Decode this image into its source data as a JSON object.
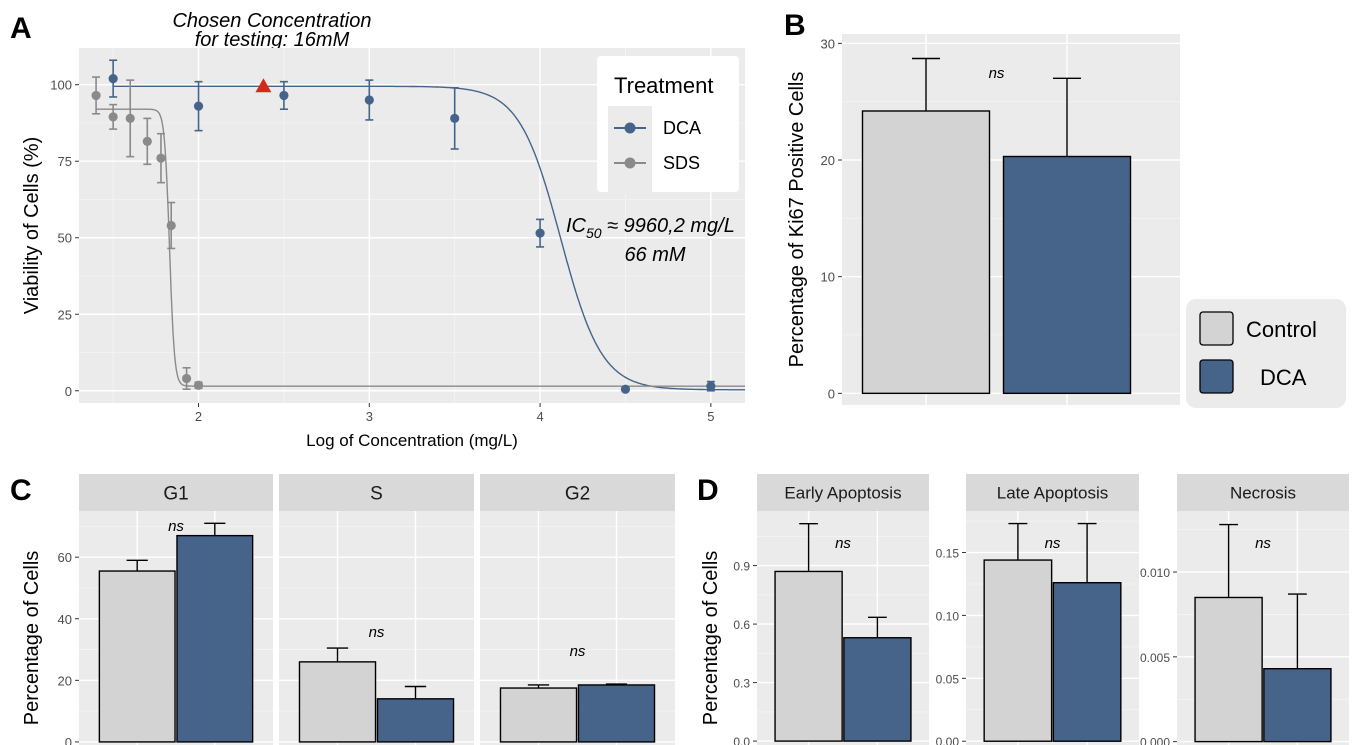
{
  "colors": {
    "panel_bg": "#ebebeb",
    "grid_major": "#ffffff",
    "strip_bg": "#d9d9d9",
    "control": "#d3d3d3",
    "dca": "#46648a",
    "sds": "#8a8a8a",
    "marker": "#d42a1a",
    "legend_bg": "#ebebeb"
  },
  "panels": {
    "A": "A",
    "B": "B",
    "C": "C",
    "D": "D"
  },
  "annotations": {
    "chosen_line1": "Chosen Concentration",
    "chosen_line2": "for testing: 16mM",
    "ic50_prefix": "IC",
    "ic50_sub": "50",
    "ic50_rest": " ≈ 9960,2 mg/L",
    "ic50_line2": "66 mM",
    "ns": "ns"
  },
  "legend_treatment": {
    "title": "Treatment",
    "items": [
      "DCA",
      "SDS"
    ]
  },
  "legend_groups": {
    "items": [
      "Control",
      "DCA"
    ]
  },
  "chart_data": [
    {
      "panel": "A",
      "type": "scatter",
      "xlabel": "Log of Concentration (mg/L)",
      "ylabel": "Viability of Cells (%)",
      "xlim": [
        1.3,
        5.2
      ],
      "ylim": [
        -4,
        112
      ],
      "xticks": [
        2,
        3,
        4,
        5
      ],
      "yticks": [
        0,
        25,
        50,
        75,
        100
      ],
      "series": [
        {
          "name": "DCA",
          "points": [
            {
              "x": 1.5,
              "y": 102,
              "err": 6
            },
            {
              "x": 2.0,
              "y": 93,
              "err": 8
            },
            {
              "x": 2.5,
              "y": 96.5,
              "err": 4.5
            },
            {
              "x": 3.0,
              "y": 95,
              "err": 6.5
            },
            {
              "x": 3.5,
              "y": 89,
              "err": 10
            },
            {
              "x": 4.0,
              "y": 51.5,
              "err": 4.5
            },
            {
              "x": 4.5,
              "y": 0.5,
              "err": 0.5
            },
            {
              "x": 5.0,
              "y": 1.5,
              "err": 1.5
            }
          ],
          "fit": {
            "top": 99.5,
            "bottom": 0.3,
            "logec50": 4.12,
            "hill": 3.6
          }
        },
        {
          "name": "SDS",
          "points": [
            {
              "x": 1.4,
              "y": 96.5,
              "err": 6
            },
            {
              "x": 1.5,
              "y": 89.5,
              "err": 4
            },
            {
              "x": 1.6,
              "y": 89,
              "err": 12.5
            },
            {
              "x": 1.7,
              "y": 81.5,
              "err": 7.5
            },
            {
              "x": 1.78,
              "y": 76,
              "err": 8
            },
            {
              "x": 1.84,
              "y": 54,
              "err": 7.5
            },
            {
              "x": 1.93,
              "y": 4,
              "err": 3.5
            },
            {
              "x": 2.0,
              "y": 1.8,
              "err": 1
            }
          ],
          "fit": {
            "top": 92,
            "bottom": 1.5,
            "logec50": 1.83,
            "hill": 30
          }
        }
      ],
      "marker": {
        "x": 2.38,
        "y": 99.5
      }
    },
    {
      "panel": "B",
      "type": "bar",
      "ylabel": "Percentage of Ki67 Positive Cells",
      "ylim": [
        -1,
        30.8
      ],
      "yticks": [
        0,
        10,
        20,
        30
      ],
      "categories": [
        "Control",
        "DCA"
      ],
      "values": [
        24.2,
        20.3
      ],
      "errors": [
        4.5,
        6.7
      ]
    },
    {
      "panel": "C",
      "type": "bar",
      "ylabel": "Percentage of Cells",
      "ylim": [
        -1,
        75
      ],
      "yticks": [
        0,
        20,
        40,
        60
      ],
      "facets": [
        {
          "label": "G1",
          "values": [
            55.5,
            67
          ],
          "errors": [
            3.5,
            4
          ]
        },
        {
          "label": "S",
          "values": [
            26,
            14
          ],
          "errors": [
            4.5,
            4
          ]
        },
        {
          "label": "G2",
          "values": [
            17.5,
            18.5
          ],
          "errors": [
            1,
            0.3
          ]
        }
      ],
      "categories": [
        "Control",
        "DCA"
      ]
    },
    {
      "panel": "D",
      "type": "bar",
      "ylabel": "Percentage of Cells",
      "categories": [
        "Control",
        "DCA"
      ],
      "facets": [
        {
          "label": "Early Apoptosis",
          "values": [
            0.87,
            0.53
          ],
          "errors": [
            0.245,
            0.105
          ],
          "ylim": [
            -0.02,
            1.18
          ],
          "yticks": [
            0.0,
            0.3,
            0.6,
            0.9
          ],
          "ticklabels": [
            "0.0",
            "0.3",
            "0.6",
            "0.9"
          ]
        },
        {
          "label": "Late Apoptosis",
          "values": [
            0.144,
            0.126
          ],
          "errors": [
            0.029,
            0.047
          ],
          "ylim": [
            -0.003,
            0.183
          ],
          "yticks": [
            0.0,
            0.05,
            0.1,
            0.15
          ],
          "ticklabels": [
            "0.00",
            "0.05",
            "0.10",
            "0.15"
          ]
        },
        {
          "label": "Necrosis",
          "values": [
            0.0085,
            0.0043
          ],
          "errors": [
            0.0043,
            0.0044
          ],
          "ylim": [
            -0.0002,
            0.0136
          ],
          "yticks": [
            0.0,
            0.005,
            0.01
          ],
          "ticklabels": [
            "0.000",
            "0.005",
            "0.010"
          ]
        }
      ]
    }
  ]
}
